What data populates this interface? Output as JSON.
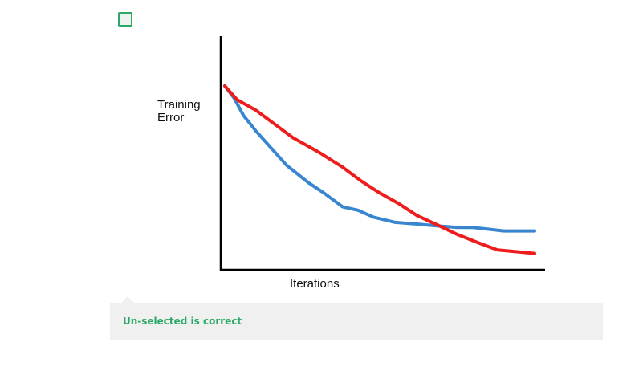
{
  "question": {
    "checkbox_checked": false
  },
  "figure": {
    "ylabel": "Training\nError",
    "xlabel": "Iterations",
    "colors": {
      "axis": "#000000",
      "blue_curve": "#3a85cf",
      "red_curve": "#ee1c1c"
    }
  },
  "chart_data": {
    "type": "line",
    "title": "",
    "xlabel": "Iterations",
    "ylabel": "Training Error",
    "xlim": [
      0,
      1
    ],
    "ylim": [
      0,
      1
    ],
    "grid": false,
    "series": [
      {
        "color": "#3a85cf",
        "x": [
          0.0,
          0.03,
          0.06,
          0.1,
          0.15,
          0.2,
          0.27,
          0.32,
          0.38,
          0.43,
          0.48,
          0.55,
          0.62,
          0.68,
          0.75,
          0.8,
          0.85,
          0.9,
          0.95,
          1.0
        ],
        "y": [
          1.0,
          0.93,
          0.83,
          0.74,
          0.64,
          0.54,
          0.44,
          0.38,
          0.3,
          0.28,
          0.24,
          0.21,
          0.2,
          0.19,
          0.18,
          0.18,
          0.17,
          0.16,
          0.16,
          0.16
        ]
      },
      {
        "color": "#ee1c1c",
        "x": [
          0.0,
          0.04,
          0.1,
          0.16,
          0.22,
          0.3,
          0.38,
          0.44,
          0.5,
          0.56,
          0.62,
          0.68,
          0.75,
          0.82,
          0.88,
          0.94,
          1.0
        ],
        "y": [
          1.0,
          0.92,
          0.86,
          0.78,
          0.7,
          0.62,
          0.53,
          0.45,
          0.38,
          0.32,
          0.25,
          0.2,
          0.14,
          0.09,
          0.05,
          0.04,
          0.03
        ]
      }
    ]
  },
  "feedback": {
    "text": "Un-selected is correct"
  }
}
